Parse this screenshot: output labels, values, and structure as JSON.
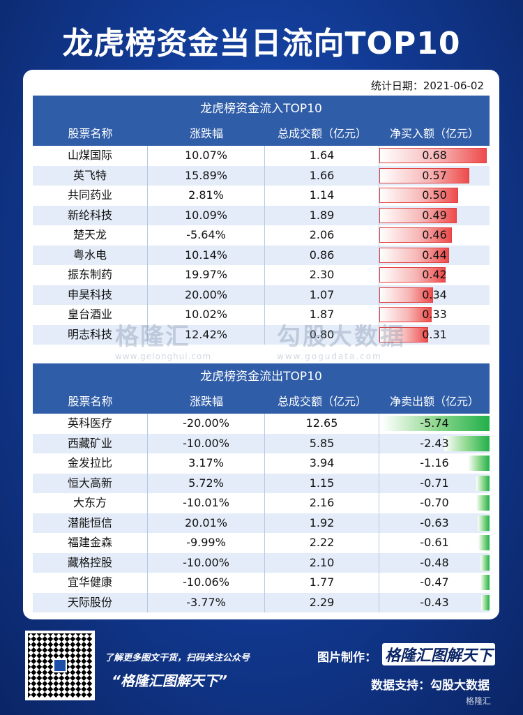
{
  "title": "龙虎榜资金当日流向TOP10",
  "stat_date": "统计日期：2021-06-02",
  "inflow": {
    "caption": "龙虎榜资金流入TOP10",
    "headers": [
      "股票名称",
      "涨跌幅",
      "总成交额（亿元）",
      "净买入额（亿元）"
    ],
    "rows": [
      {
        "name": "山煤国际",
        "change": "10.07%",
        "turnover": "1.64",
        "net": "0.68"
      },
      {
        "name": "英飞特",
        "change": "15.89%",
        "turnover": "1.66",
        "net": "0.57"
      },
      {
        "name": "共同药业",
        "change": "2.81%",
        "turnover": "1.14",
        "net": "0.50"
      },
      {
        "name": "新纶科技",
        "change": "10.09%",
        "turnover": "1.89",
        "net": "0.49"
      },
      {
        "name": "楚天龙",
        "change": "-5.64%",
        "turnover": "2.06",
        "net": "0.46"
      },
      {
        "name": "粤水电",
        "change": "10.14%",
        "turnover": "0.86",
        "net": "0.44"
      },
      {
        "name": "振东制药",
        "change": "19.97%",
        "turnover": "2.30",
        "net": "0.42"
      },
      {
        "name": "申昊科技",
        "change": "20.00%",
        "turnover": "1.07",
        "net": "0.34"
      },
      {
        "name": "皇台酒业",
        "change": "10.02%",
        "turnover": "1.87",
        "net": "0.33"
      },
      {
        "name": "明志科技",
        "change": "12.42%",
        "turnover": "0.80",
        "net": "0.31"
      }
    ],
    "bar_color": "#ee4b4b"
  },
  "outflow": {
    "caption": "龙虎榜资金流出TOP10",
    "headers": [
      "股票名称",
      "涨跌幅",
      "总成交额（亿元）",
      "净卖出额（亿元）"
    ],
    "rows": [
      {
        "name": "英科医疗",
        "change": "-20.00%",
        "turnover": "12.65",
        "net": "-5.74"
      },
      {
        "name": "西藏矿业",
        "change": "-10.00%",
        "turnover": "5.85",
        "net": "-2.43"
      },
      {
        "name": "金发拉比",
        "change": "3.17%",
        "turnover": "3.94",
        "net": "-1.16"
      },
      {
        "name": "恒大高新",
        "change": "5.72%",
        "turnover": "1.15",
        "net": "-0.71"
      },
      {
        "name": "大东方",
        "change": "-10.01%",
        "turnover": "2.16",
        "net": "-0.70"
      },
      {
        "name": "潜能恒信",
        "change": "20.01%",
        "turnover": "1.92",
        "net": "-0.63"
      },
      {
        "name": "福建金森",
        "change": "-9.99%",
        "turnover": "2.22",
        "net": "-0.61"
      },
      {
        "name": "藏格控股",
        "change": "-10.00%",
        "turnover": "2.10",
        "net": "-0.48"
      },
      {
        "name": "宜华健康",
        "change": "-10.06%",
        "turnover": "1.77",
        "net": "-0.47"
      },
      {
        "name": "天际股份",
        "change": "-3.77%",
        "turnover": "2.29",
        "net": "-0.43"
      }
    ],
    "bar_color": "#21b04a"
  },
  "watermark": {
    "left": "格隆汇",
    "left_sub": "www.gelonghui.com",
    "right": "勾股大数据",
    "right_sub": "www.gogudata.com"
  },
  "footer": {
    "tagline": "了解更多图文干货，扫码关注公众号",
    "slogan": "“格隆汇图解天下”",
    "maker_label": "图片制作：",
    "maker_logo": "格隆汇图解天下",
    "data_support": "数据支持：勾股大数据",
    "brand": "格隆汇"
  }
}
